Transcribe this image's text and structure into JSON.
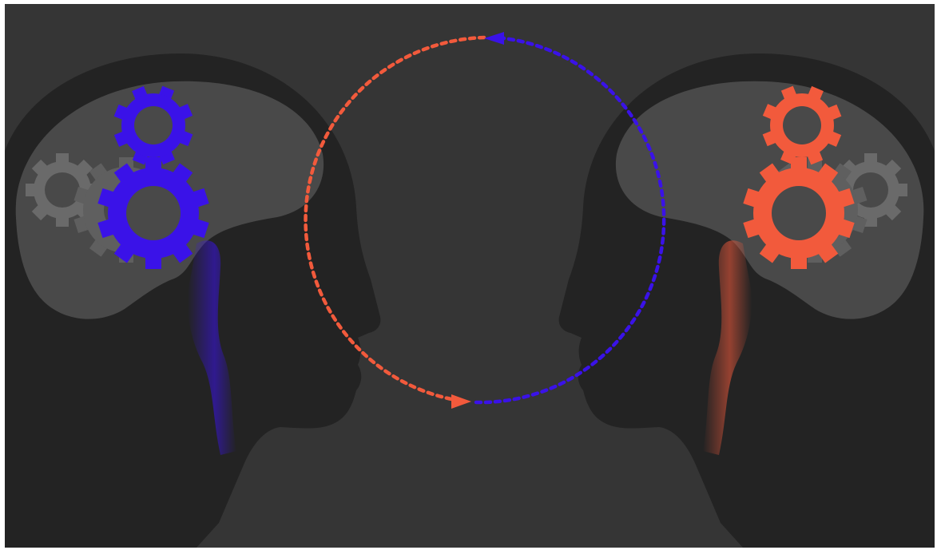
{
  "scene": {
    "background_color": "#353535",
    "head_color": "#232323",
    "brain_color": "#494949",
    "grey_gear_color": "#6a6a6a",
    "left_accent_color": "#3a12e8",
    "right_accent_color": "#f25a3c",
    "left_head": {
      "icon": "human-head-silhouette-icon",
      "facing": "right",
      "gears": [
        "gear-icon",
        "gear-icon",
        "gear-icon"
      ]
    },
    "right_head": {
      "icon": "human-head-silhouette-icon",
      "facing": "left",
      "gears": [
        "gear-icon",
        "gear-icon",
        "gear-icon"
      ]
    },
    "cycle": {
      "icon": "circular-dashed-arrows-icon",
      "arrows": [
        "arrow-right-icon",
        "arrow-left-icon"
      ]
    }
  }
}
